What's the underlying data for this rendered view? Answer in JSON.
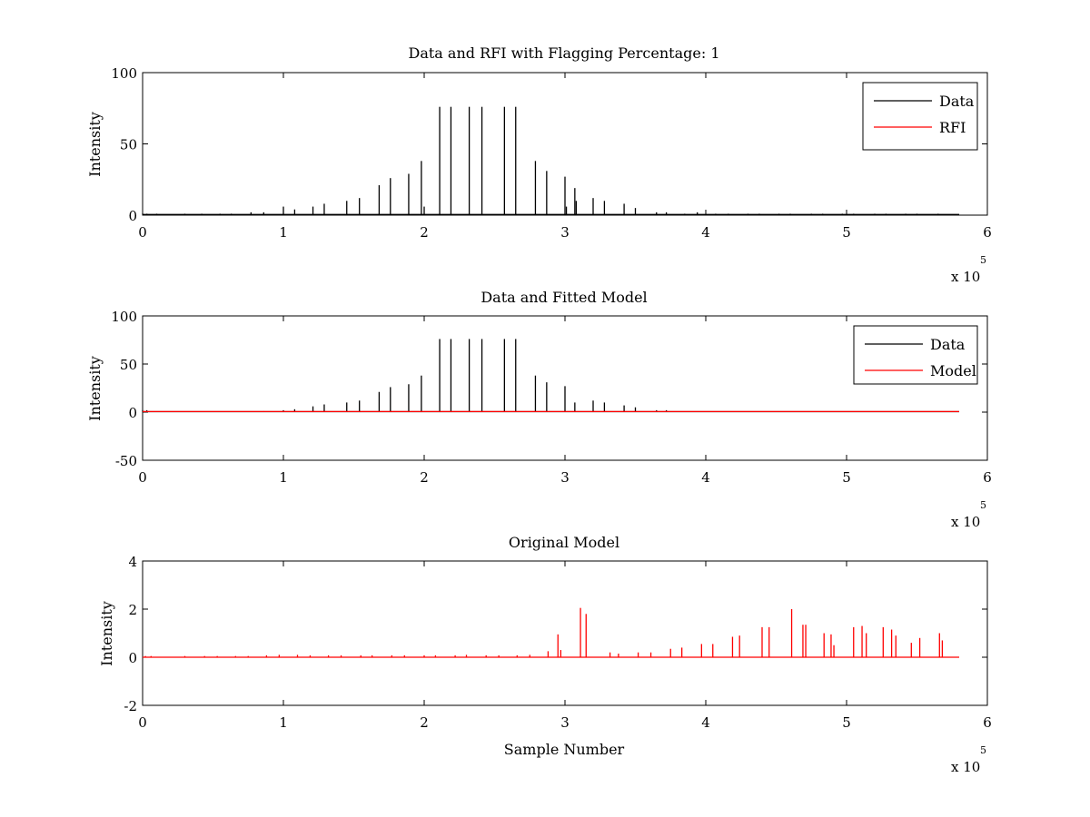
{
  "figure": {
    "background": "#ffffff",
    "axis_color": "#000000"
  },
  "chart_data": [
    {
      "type": "line",
      "title": "Data and RFI with Flagging Percentage: 1",
      "xlabel": "",
      "ylabel": "Intensity",
      "xlim": [
        0,
        600000
      ],
      "ylim": [
        0,
        100
      ],
      "xticks": [
        0,
        100000,
        200000,
        300000,
        400000,
        500000,
        600000
      ],
      "xtick_labels": [
        "0",
        "1",
        "2",
        "3",
        "4",
        "5",
        "6"
      ],
      "yticks": [
        0,
        50,
        100
      ],
      "ytick_labels": [
        "0",
        "50",
        "100"
      ],
      "x_multiplier": {
        "base": "x 10",
        "exponent": "5"
      },
      "x_max": 580000,
      "legend": {
        "position": "top-right",
        "entries": [
          {
            "label": "Data",
            "color": "#000000"
          },
          {
            "label": "RFI",
            "color": "#ff0000"
          }
        ]
      },
      "series": [
        {
          "name": "Data",
          "color": "#000000",
          "style": "spikes",
          "baseline": 0.5,
          "x": [
            0,
            3000,
            10000,
            30000,
            42000,
            55000,
            63000,
            77000,
            86000,
            100000,
            108000,
            121000,
            129000,
            145000,
            154000,
            168000,
            176000,
            189000,
            198000,
            200000,
            211000,
            219000,
            232000,
            241000,
            257000,
            265000,
            279000,
            287000,
            300000,
            301000,
            307000,
            308000,
            320000,
            328000,
            342000,
            350000,
            365000,
            372000,
            385000,
            394000,
            407000,
            416000,
            430000,
            438000,
            452000,
            460000,
            475000,
            483000,
            497000,
            505000,
            520000,
            528000,
            542000,
            550000,
            565000
          ],
          "y": [
            1,
            1,
            1,
            1,
            1,
            1,
            1,
            2,
            2,
            6,
            4,
            6,
            8,
            10,
            12,
            21,
            26,
            29,
            38,
            6,
            76,
            76,
            76,
            76,
            76,
            76,
            38,
            31,
            27,
            6,
            19,
            10,
            12,
            10,
            8,
            5,
            2,
            2,
            1,
            2,
            1,
            1,
            1,
            1,
            1,
            1,
            1,
            1,
            1,
            1,
            1,
            1,
            1,
            1,
            1
          ]
        },
        {
          "name": "RFI",
          "color": "#ff0000",
          "style": "spikes",
          "baseline": 0.5,
          "x": [],
          "y": []
        }
      ]
    },
    {
      "type": "line",
      "title": "Data and Fitted Model",
      "xlabel": "",
      "ylabel": "Intensity",
      "xlim": [
        0,
        600000
      ],
      "ylim": [
        -50,
        100
      ],
      "xticks": [
        0,
        100000,
        200000,
        300000,
        400000,
        500000,
        600000
      ],
      "xtick_labels": [
        "0",
        "1",
        "2",
        "3",
        "4",
        "5",
        "6"
      ],
      "yticks": [
        -50,
        0,
        50,
        100
      ],
      "ytick_labels": [
        "-50",
        "0",
        "50",
        "100"
      ],
      "x_multiplier": {
        "base": "x 10",
        "exponent": "5"
      },
      "x_max": 580000,
      "legend": {
        "position": "top-right",
        "entries": [
          {
            "label": "Data",
            "color": "#000000"
          },
          {
            "label": "Model",
            "color": "#ff0000"
          }
        ]
      },
      "series": [
        {
          "name": "Data",
          "color": "#000000",
          "style": "spikes",
          "baseline": 0.5,
          "x": [
            0,
            3000,
            86000,
            100000,
            108000,
            121000,
            129000,
            145000,
            154000,
            168000,
            176000,
            189000,
            198000,
            211000,
            219000,
            232000,
            241000,
            257000,
            265000,
            279000,
            287000,
            300000,
            307000,
            320000,
            328000,
            342000,
            350000,
            365000,
            372000
          ],
          "y": [
            2,
            2,
            1,
            2,
            3,
            6,
            8,
            10,
            12,
            21,
            26,
            29,
            38,
            76,
            76,
            76,
            76,
            76,
            76,
            38,
            31,
            27,
            10,
            12,
            10,
            7,
            5,
            2,
            2
          ]
        },
        {
          "name": "Model",
          "color": "#ff0000",
          "style": "line",
          "x": [
            0,
            580000
          ],
          "y": [
            0.6,
            0.6
          ]
        }
      ]
    },
    {
      "type": "line",
      "title": "Original Model",
      "xlabel": "Sample Number",
      "ylabel": "Intensity",
      "xlim": [
        0,
        600000
      ],
      "ylim": [
        -2,
        4
      ],
      "xticks": [
        0,
        100000,
        200000,
        300000,
        400000,
        500000,
        600000
      ],
      "xtick_labels": [
        "0",
        "1",
        "2",
        "3",
        "4",
        "5",
        "6"
      ],
      "yticks": [
        -2,
        0,
        2,
        4
      ],
      "ytick_labels": [
        "-2",
        "0",
        "2",
        "4"
      ],
      "x_multiplier": {
        "base": "x 10",
        "exponent": "5"
      },
      "x_max": 580000,
      "legend": null,
      "series": [
        {
          "name": "",
          "color": "#ff0000",
          "style": "spikes",
          "baseline": 0,
          "x": [
            2000,
            6000,
            30000,
            44000,
            53000,
            66000,
            75000,
            88000,
            97000,
            110000,
            119000,
            132000,
            141000,
            155000,
            163000,
            177000,
            186000,
            200000,
            208000,
            222000,
            230000,
            244000,
            253000,
            266000,
            275000,
            288000,
            295000,
            297000,
            311000,
            315000,
            332000,
            338000,
            352000,
            361000,
            375000,
            383000,
            397000,
            405000,
            419000,
            424000,
            440000,
            445000,
            461000,
            469000,
            471000,
            484000,
            489000,
            491000,
            505000,
            511000,
            514000,
            526000,
            532000,
            535000,
            546000,
            552000,
            566000,
            568000
          ],
          "y": [
            0.05,
            0.05,
            0.05,
            0.05,
            0.05,
            0.05,
            0.05,
            0.08,
            0.1,
            0.1,
            0.08,
            0.08,
            0.08,
            0.08,
            0.08,
            0.08,
            0.08,
            0.08,
            0.08,
            0.08,
            0.1,
            0.08,
            0.08,
            0.08,
            0.1,
            0.25,
            0.95,
            0.3,
            2.05,
            1.8,
            0.2,
            0.15,
            0.2,
            0.2,
            0.35,
            0.4,
            0.55,
            0.55,
            0.85,
            0.9,
            1.25,
            1.25,
            2.0,
            1.35,
            1.35,
            1.0,
            0.95,
            0.5,
            1.25,
            1.3,
            1.0,
            1.25,
            1.15,
            0.9,
            0.6,
            0.8,
            1.0,
            0.7
          ]
        }
      ]
    }
  ]
}
